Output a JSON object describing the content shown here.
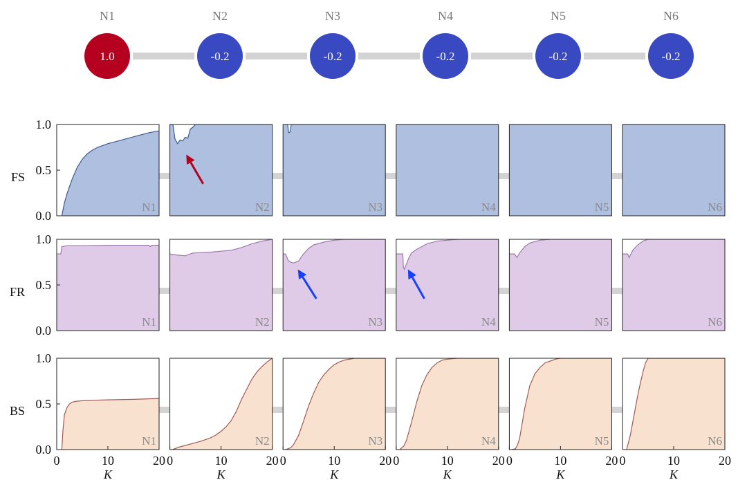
{
  "network": {
    "nodes": [
      {
        "name": "N1",
        "value": "1.0",
        "color": "#b5001f"
      },
      {
        "name": "N2",
        "value": "-0.2",
        "color": "#3949c1"
      },
      {
        "name": "N3",
        "value": "-0.2",
        "color": "#3949c1"
      },
      {
        "name": "N4",
        "value": "-0.2",
        "color": "#3949c1"
      },
      {
        "name": "N5",
        "value": "-0.2",
        "color": "#3949c1"
      },
      {
        "name": "N6",
        "value": "-0.2",
        "color": "#3949c1"
      }
    ],
    "edge_color": "#d3d3d3"
  },
  "chart_data": {
    "type": "area",
    "rows": [
      {
        "label": "FS",
        "fill": "#aebfe0",
        "line": "#3a5a8c"
      },
      {
        "label": "FR",
        "fill": "#dfcbe8",
        "line": "#9a7aaa"
      },
      {
        "label": "BS",
        "fill": "#f8e2cf",
        "line": "#a05a52"
      }
    ],
    "columns": [
      "N1",
      "N2",
      "N3",
      "N4",
      "N5",
      "N6"
    ],
    "xlim": [
      0,
      20
    ],
    "ylim": [
      0,
      1
    ],
    "xticks": [
      "0",
      "10",
      "20"
    ],
    "yticks": [
      "0.0",
      "0.5",
      "1.0"
    ],
    "xlabel": "K",
    "series": [
      [
        {
          "x": [
            1,
            1.5,
            2,
            3,
            4,
            5,
            6,
            7,
            8,
            9,
            10,
            12,
            14,
            16,
            18,
            20
          ],
          "y": [
            0,
            0.14,
            0.24,
            0.4,
            0.53,
            0.62,
            0.68,
            0.72,
            0.75,
            0.77,
            0.79,
            0.82,
            0.85,
            0.88,
            0.91,
            0.93
          ]
        },
        {
          "x": [
            0,
            0.6,
            1,
            1.5,
            2,
            2.5,
            3,
            3.5,
            4,
            4.5,
            5,
            6,
            8,
            12,
            16,
            20
          ],
          "y": [
            1.0,
            1.0,
            0.84,
            0.79,
            0.83,
            0.82,
            0.86,
            0.85,
            0.95,
            0.97,
            1.0,
            1.0,
            1.0,
            1.0,
            1.0,
            1.0
          ]
        },
        {
          "x": [
            0,
            0.9,
            1.1,
            1.4,
            1.6,
            2,
            4,
            8,
            12,
            16,
            20
          ],
          "y": [
            1.0,
            1.0,
            0.91,
            0.92,
            1.0,
            1.0,
            1.0,
            1.0,
            1.0,
            1.0,
            1.0
          ]
        },
        {
          "x": [
            0,
            5,
            10,
            15,
            20
          ],
          "y": [
            1.0,
            1.0,
            1.0,
            1.0,
            1.0
          ]
        },
        {
          "x": [
            0,
            5,
            10,
            15,
            20
          ],
          "y": [
            1.0,
            1.0,
            1.0,
            1.0,
            1.0
          ]
        },
        {
          "x": [
            0,
            5,
            10,
            15,
            20
          ],
          "y": [
            1.0,
            1.0,
            1.0,
            1.0,
            1.0
          ]
        }
      ],
      [
        {
          "x": [
            0,
            0.8,
            1,
            2,
            5,
            10,
            15,
            18,
            18.3,
            18.6,
            20
          ],
          "y": [
            0.84,
            0.84,
            0.92,
            0.93,
            0.93,
            0.935,
            0.935,
            0.935,
            0.92,
            0.935,
            0.935
          ]
        },
        {
          "x": [
            0,
            1,
            3,
            4,
            4.5,
            8,
            12,
            14,
            16,
            18,
            20
          ],
          "y": [
            0.84,
            0.83,
            0.82,
            0.84,
            0.85,
            0.86,
            0.88,
            0.91,
            0.95,
            0.98,
            1.0
          ]
        },
        {
          "x": [
            0,
            0.5,
            1,
            1.5,
            2,
            3,
            4,
            5,
            6,
            8,
            10,
            12,
            14,
            16,
            20
          ],
          "y": [
            0.84,
            0.84,
            0.77,
            0.75,
            0.74,
            0.76,
            0.84,
            0.9,
            0.94,
            0.97,
            0.99,
            1.0,
            1.0,
            1.0,
            1.0
          ]
        },
        {
          "x": [
            0,
            1.3,
            1.4,
            1.6,
            2,
            2.5,
            3,
            4,
            5,
            6,
            8,
            10,
            12,
            14,
            20
          ],
          "y": [
            0.84,
            0.84,
            0.7,
            0.67,
            0.73,
            0.8,
            0.85,
            0.89,
            0.92,
            0.95,
            0.98,
            0.99,
            1.0,
            1.0,
            1.0
          ]
        },
        {
          "x": [
            0,
            1,
            1.5,
            2,
            3,
            4,
            6,
            8,
            10,
            20
          ],
          "y": [
            0.84,
            0.84,
            0.8,
            0.85,
            0.92,
            0.96,
            0.99,
            1.0,
            1.0,
            1.0
          ]
        },
        {
          "x": [
            0,
            1,
            1.3,
            2,
            3,
            4,
            5,
            20
          ],
          "y": [
            0.84,
            0.84,
            0.8,
            0.88,
            0.94,
            0.98,
            1.0,
            1.0
          ]
        }
      ],
      [
        {
          "x": [
            1,
            1.2,
            1.5,
            2,
            2.5,
            3,
            4,
            5,
            7,
            10,
            15,
            20
          ],
          "y": [
            0,
            0.2,
            0.38,
            0.46,
            0.5,
            0.52,
            0.53,
            0.535,
            0.54,
            0.545,
            0.55,
            0.56
          ]
        },
        {
          "x": [
            0.5,
            2,
            4,
            6,
            8,
            9,
            10,
            11,
            12,
            13,
            14,
            15,
            16,
            17,
            18,
            19,
            20
          ],
          "y": [
            0,
            0.03,
            0.06,
            0.09,
            0.13,
            0.16,
            0.2,
            0.25,
            0.32,
            0.42,
            0.55,
            0.66,
            0.77,
            0.85,
            0.91,
            0.96,
            1.0
          ]
        },
        {
          "x": [
            0.5,
            1.5,
            2,
            3,
            4,
            5,
            6,
            7,
            8,
            9,
            10,
            11,
            12,
            14,
            16,
            20
          ],
          "y": [
            0,
            0.02,
            0.05,
            0.15,
            0.31,
            0.48,
            0.62,
            0.74,
            0.82,
            0.88,
            0.93,
            0.96,
            0.98,
            1.0,
            1.0,
            1.0
          ]
        },
        {
          "x": [
            0.7,
            1.5,
            2,
            3,
            4,
            5,
            6,
            7,
            8,
            9,
            10,
            12,
            14,
            20
          ],
          "y": [
            0,
            0.04,
            0.1,
            0.3,
            0.52,
            0.7,
            0.82,
            0.9,
            0.95,
            0.98,
            0.99,
            1.0,
            1.0,
            1.0
          ]
        },
        {
          "x": [
            0.5,
            1.2,
            1.6,
            2,
            3,
            4,
            5,
            6,
            7,
            8,
            9,
            10,
            12,
            20
          ],
          "y": [
            0,
            0.01,
            0.05,
            0.12,
            0.45,
            0.7,
            0.83,
            0.9,
            0.95,
            0.97,
            0.99,
            1.0,
            1.0,
            1.0
          ]
        },
        {
          "x": [
            0.8,
            1.5,
            2,
            2.5,
            3,
            3.5,
            4,
            4.5,
            5,
            10,
            15,
            20
          ],
          "y": [
            0,
            0.15,
            0.3,
            0.45,
            0.6,
            0.73,
            0.85,
            0.95,
            1.0,
            1.0,
            1.0,
            1.0
          ]
        }
      ]
    ],
    "arrows": [
      {
        "row": 0,
        "col": 1,
        "color": "#b3001e",
        "from": [
          6.5,
          0.35
        ],
        "to": [
          3.2,
          0.67
        ]
      },
      {
        "row": 1,
        "col": 2,
        "color": "#1540ff",
        "from": [
          6.5,
          0.35
        ],
        "to": [
          2.9,
          0.67
        ]
      },
      {
        "row": 1,
        "col": 3,
        "color": "#1540ff",
        "from": [
          5.5,
          0.35
        ],
        "to": [
          2.3,
          0.67
        ]
      }
    ]
  }
}
